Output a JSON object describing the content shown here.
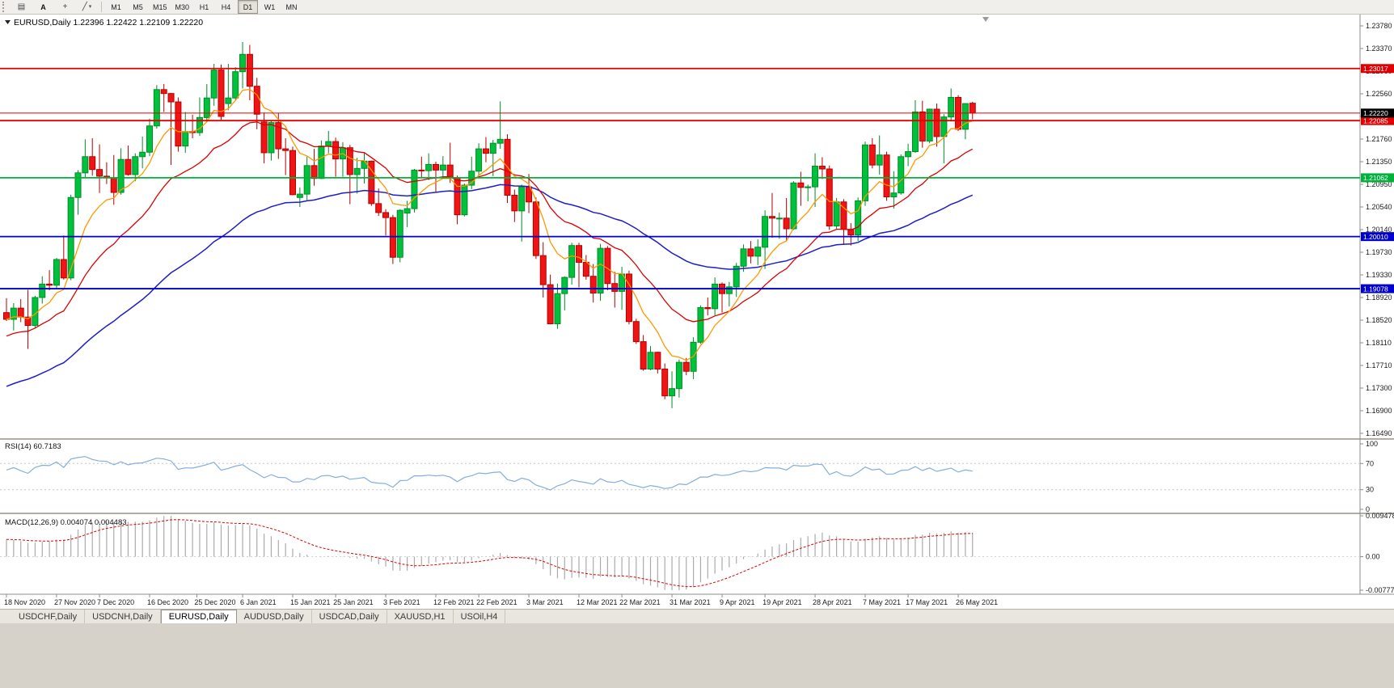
{
  "toolbar": {
    "icon_buttons": [
      {
        "name": "tick-chart-icon",
        "glyph": "▤"
      },
      {
        "name": "text-label-button",
        "glyph": "A"
      },
      {
        "name": "crosshair-icon",
        "glyph": "+"
      },
      {
        "name": "draw-tools-icon",
        "glyph": "╱",
        "caret": "▾"
      }
    ],
    "timeframes": [
      {
        "label": "M1"
      },
      {
        "label": "M5"
      },
      {
        "label": "M15"
      },
      {
        "label": "M30"
      },
      {
        "label": "H1"
      },
      {
        "label": "H4"
      },
      {
        "label": "D1",
        "active": true
      },
      {
        "label": "W1"
      },
      {
        "label": "MN"
      }
    ]
  },
  "chart": {
    "title": "EURUSD,Daily 1.22396 1.22422 1.22109 1.22220",
    "current_price": {
      "label": "1.22220",
      "value": 1.2222,
      "badge_bg": "#000000",
      "line_color": "#e00000"
    },
    "levels": [
      {
        "value": 1.23017,
        "label": "1.23017",
        "color": "#e00000"
      },
      {
        "value": 1.22085,
        "label": "1.22085",
        "color": "#e00000"
      },
      {
        "value": 1.21062,
        "label": "1.21062",
        "color": "#00b23c"
      },
      {
        "value": 1.2001,
        "label": "1.20010",
        "color": "#0000cc"
      },
      {
        "value": 1.19078,
        "label": "1.19078",
        "color": "#0000cc"
      }
    ],
    "price_axis_labels": [
      "1.23780",
      "1.23370",
      "1.22960",
      "1.22560",
      "1.22150",
      "1.21760",
      "1.21350",
      "1.20950",
      "1.20540",
      "1.20140",
      "1.19730",
      "1.19330",
      "1.18920",
      "1.18520",
      "1.18110",
      "1.17710",
      "1.17300",
      "1.16900",
      "1.16490"
    ],
    "colors": {
      "bull_fill": "#00c13c",
      "bull_stroke": "#008c28",
      "bear_fill": "#f01414",
      "bear_stroke": "#b40000",
      "ma_fast": "#ff9800",
      "ma_med": "#dc0000",
      "ma_slow": "#1e1ec8"
    }
  },
  "rsi": {
    "label": "RSI(14) 60.7183",
    "value": 60.7183,
    "line_color": "#85aedc",
    "axis_labels": [
      {
        "text": "100",
        "value": 100
      },
      {
        "text": "70",
        "value": 70
      },
      {
        "text": "30",
        "value": 30
      },
      {
        "text": "0",
        "value": 0
      }
    ]
  },
  "macd": {
    "label": "MACD(12,26,9) 0.004074 0.004483",
    "values": [
      0.004074,
      0.004483
    ],
    "hist_color": "#ababab",
    "signal_color": "#e00000",
    "axis_labels": [
      {
        "text": "0.009478",
        "value": 0.009478
      },
      {
        "text": "0.00",
        "value": 0
      },
      {
        "text": "-0.00777",
        "value": -0.00777
      }
    ]
  },
  "time_axis": {
    "labels": [
      {
        "text": "18 Nov 2020",
        "i": 0
      },
      {
        "text": "27 Nov 2020",
        "i": 7
      },
      {
        "text": "7 Dec 2020",
        "i": 13
      },
      {
        "text": "16 Dec 2020",
        "i": 20
      },
      {
        "text": "25 Dec 2020",
        "i": 26.6
      },
      {
        "text": "6 Jan 2021",
        "i": 33
      },
      {
        "text": "15 Jan 2021",
        "i": 40
      },
      {
        "text": "25 Jan 2021",
        "i": 46
      },
      {
        "text": "3 Feb 2021",
        "i": 53
      },
      {
        "text": "12 Feb 2021",
        "i": 60
      },
      {
        "text": "22 Feb 2021",
        "i": 66
      },
      {
        "text": "3 Mar 2021",
        "i": 73
      },
      {
        "text": "12 Mar 2021",
        "i": 80
      },
      {
        "text": "22 Mar 2021",
        "i": 86
      },
      {
        "text": "31 Mar 2021",
        "i": 93
      },
      {
        "text": "9 Apr 2021",
        "i": 100
      },
      {
        "text": "19 Apr 2021",
        "i": 106
      },
      {
        "text": "28 Apr 2021",
        "i": 113
      },
      {
        "text": "7 May 2021",
        "i": 120
      },
      {
        "text": "17 May 2021",
        "i": 126
      },
      {
        "text": "26 May 2021",
        "i": 133
      }
    ]
  },
  "tabs": [
    {
      "label": "USDCHF,Daily"
    },
    {
      "label": "USDCNH,Daily"
    },
    {
      "label": "EURUSD,Daily",
      "active": true
    },
    {
      "label": "AUDUSD,Daily"
    },
    {
      "label": "USDCAD,Daily"
    },
    {
      "label": "XAUUSD,H1"
    },
    {
      "label": "USOil,H4"
    }
  ],
  "chart_data": {
    "type": "candlestick",
    "symbol": "EURUSD",
    "timeframe": "Daily",
    "last_ohlc": {
      "open": 1.22396,
      "high": 1.22422,
      "low": 1.22109,
      "close": 1.2222
    },
    "price_range": [
      1.1649,
      1.2378
    ],
    "ohlc": [
      [
        1.1865,
        1.1891,
        1.185,
        1.1853
      ],
      [
        1.1853,
        1.1882,
        1.1833,
        1.1873
      ],
      [
        1.1873,
        1.1889,
        1.1848,
        1.1857
      ],
      [
        1.1857,
        1.1906,
        1.18,
        1.1842
      ],
      [
        1.1842,
        1.1895,
        1.1838,
        1.1892
      ],
      [
        1.1892,
        1.193,
        1.1881,
        1.1916
      ],
      [
        1.1916,
        1.1941,
        1.1905,
        1.1914
      ],
      [
        1.1914,
        1.1963,
        1.1907,
        1.196
      ],
      [
        1.196,
        1.2003,
        1.1924,
        1.1927
      ],
      [
        1.1927,
        1.2076,
        1.1923,
        1.2071
      ],
      [
        1.2071,
        1.212,
        1.204,
        1.2115
      ],
      [
        1.2115,
        1.2175,
        1.2106,
        1.2144
      ],
      [
        1.2144,
        1.2177,
        1.211,
        1.2121
      ],
      [
        1.2121,
        1.2166,
        1.2079,
        1.2109
      ],
      [
        1.2109,
        1.2134,
        1.2095,
        1.2106
      ],
      [
        1.2106,
        1.2147,
        1.2058,
        1.208
      ],
      [
        1.208,
        1.2159,
        1.2076,
        1.2139
      ],
      [
        1.2139,
        1.2164,
        1.211,
        1.2112
      ],
      [
        1.2112,
        1.215,
        1.21,
        1.2144
      ],
      [
        1.2144,
        1.218,
        1.2123,
        1.2152
      ],
      [
        1.2152,
        1.2212,
        1.2145,
        1.2199
      ],
      [
        1.2199,
        1.2272,
        1.2194,
        1.2264
      ],
      [
        1.2264,
        1.2274,
        1.2224,
        1.2257
      ],
      [
        1.2257,
        1.2258,
        1.2129,
        1.2242
      ],
      [
        1.2242,
        1.225,
        1.2153,
        1.2163
      ],
      [
        1.2163,
        1.2224,
        1.2151,
        1.2189
      ],
      [
        1.2189,
        1.2219,
        1.2177,
        1.2187
      ],
      [
        1.2187,
        1.225,
        1.2181,
        1.2214
      ],
      [
        1.2214,
        1.2274,
        1.2206,
        1.2249
      ],
      [
        1.2249,
        1.231,
        1.2235,
        1.2299
      ],
      [
        1.2299,
        1.2309,
        1.221,
        1.2216
      ],
      [
        1.2239,
        1.231,
        1.2227,
        1.2249
      ],
      [
        1.2249,
        1.2304,
        1.2245,
        1.2296
      ],
      [
        1.2296,
        1.2349,
        1.2266,
        1.2327
      ],
      [
        1.2327,
        1.2344,
        1.2245,
        1.227
      ],
      [
        1.227,
        1.2285,
        1.2193,
        1.222
      ],
      [
        1.2206,
        1.2223,
        1.2132,
        1.2151
      ],
      [
        1.2151,
        1.2208,
        1.2137,
        1.2205
      ],
      [
        1.2205,
        1.2222,
        1.214,
        1.2158
      ],
      [
        1.2158,
        1.2177,
        1.2111,
        1.2155
      ],
      [
        1.2155,
        1.2162,
        1.2075,
        1.2076
      ],
      [
        1.2071,
        1.2089,
        1.2054,
        1.2077
      ],
      [
        1.2077,
        1.2144,
        1.2066,
        1.2128
      ],
      [
        1.2128,
        1.2158,
        1.2092,
        1.2105
      ],
      [
        1.2105,
        1.2173,
        1.2104,
        1.2163
      ],
      [
        1.2163,
        1.219,
        1.215,
        1.2171
      ],
      [
        1.2171,
        1.2178,
        1.2108,
        1.214
      ],
      [
        1.214,
        1.217,
        1.2108,
        1.216
      ],
      [
        1.216,
        1.2165,
        1.2059,
        1.2112
      ],
      [
        1.2112,
        1.2142,
        1.2078,
        1.2123
      ],
      [
        1.2123,
        1.2151,
        1.2096,
        1.2136
      ],
      [
        1.2136,
        1.2137,
        1.2056,
        1.206
      ],
      [
        1.206,
        1.2087,
        1.2038,
        1.2044
      ],
      [
        1.2044,
        1.205,
        1.2003,
        1.2035
      ],
      [
        1.2035,
        1.204,
        1.1952,
        1.1964
      ],
      [
        1.1964,
        1.205,
        1.1955,
        1.2048
      ],
      [
        1.2043,
        1.2065,
        1.2018,
        1.2051
      ],
      [
        1.2051,
        1.2122,
        1.2044,
        1.212
      ],
      [
        1.212,
        1.2144,
        1.2105,
        1.2119
      ],
      [
        1.2119,
        1.215,
        1.2102,
        1.213
      ],
      [
        1.213,
        1.2135,
        1.2081,
        1.212
      ],
      [
        1.212,
        1.2145,
        1.2109,
        1.2129
      ],
      [
        1.2129,
        1.2169,
        1.2097,
        1.2106
      ],
      [
        1.2106,
        1.211,
        1.2023,
        1.204
      ],
      [
        1.204,
        1.2096,
        1.2037,
        1.2093
      ],
      [
        1.2093,
        1.2144,
        1.2086,
        1.2118
      ],
      [
        1.2118,
        1.2168,
        1.2109,
        1.2158
      ],
      [
        1.2158,
        1.2179,
        1.2134,
        1.215
      ],
      [
        1.215,
        1.2174,
        1.2109,
        1.2168
      ],
      [
        1.2168,
        1.2243,
        1.2158,
        1.2175
      ],
      [
        1.2175,
        1.2184,
        1.2061,
        1.2075
      ],
      [
        1.2075,
        1.2085,
        1.2027,
        1.2047
      ],
      [
        1.2047,
        1.2094,
        1.1992,
        1.209
      ],
      [
        1.209,
        1.2113,
        1.2043,
        1.2063
      ],
      [
        1.2063,
        1.2071,
        1.1961,
        1.1967
      ],
      [
        1.1967,
        1.1991,
        1.1892,
        1.1915
      ],
      [
        1.1915,
        1.1933,
        1.1844,
        1.1845
      ],
      [
        1.1845,
        1.1917,
        1.1836,
        1.1899
      ],
      [
        1.1899,
        1.193,
        1.1869,
        1.1928
      ],
      [
        1.1928,
        1.199,
        1.1915,
        1.1985
      ],
      [
        1.1985,
        1.199,
        1.191,
        1.1955
      ],
      [
        1.1955,
        1.1968,
        1.1924,
        1.193
      ],
      [
        1.193,
        1.1952,
        1.1883,
        1.19
      ],
      [
        1.19,
        1.1988,
        1.1886,
        1.198
      ],
      [
        1.198,
        1.1984,
        1.1905,
        1.1917
      ],
      [
        1.1917,
        1.1938,
        1.1874,
        1.1903
      ],
      [
        1.1903,
        1.1947,
        1.187,
        1.1934
      ],
      [
        1.1934,
        1.194,
        1.1844,
        1.1849
      ],
      [
        1.1849,
        1.1854,
        1.1809,
        1.1813
      ],
      [
        1.1813,
        1.1825,
        1.1761,
        1.1764
      ],
      [
        1.1764,
        1.1805,
        1.1762,
        1.1794
      ],
      [
        1.1794,
        1.1795,
        1.1756,
        1.1764
      ],
      [
        1.1764,
        1.1774,
        1.171,
        1.1716
      ],
      [
        1.1716,
        1.176,
        1.1694,
        1.1729
      ],
      [
        1.1729,
        1.1781,
        1.1713,
        1.1776
      ],
      [
        1.1776,
        1.1784,
        1.1753,
        1.176
      ],
      [
        1.176,
        1.1821,
        1.1746,
        1.1812
      ],
      [
        1.1812,
        1.1878,
        1.1809,
        1.1874
      ],
      [
        1.1874,
        1.1892,
        1.186,
        1.1872
      ],
      [
        1.1872,
        1.1928,
        1.186,
        1.1916
      ],
      [
        1.1916,
        1.1919,
        1.1865,
        1.1899
      ],
      [
        1.1899,
        1.192,
        1.1876,
        1.1911
      ],
      [
        1.1911,
        1.1954,
        1.1893,
        1.1948
      ],
      [
        1.1948,
        1.1987,
        1.1938,
        1.1979
      ],
      [
        1.1979,
        1.1993,
        1.1953,
        1.1966
      ],
      [
        1.1966,
        1.1996,
        1.195,
        1.1982
      ],
      [
        1.1982,
        1.2048,
        1.1943,
        1.2037
      ],
      [
        1.2037,
        1.2079,
        1.1999,
        1.2034
      ],
      [
        1.2034,
        1.2044,
        1.1997,
        1.2034
      ],
      [
        1.2034,
        1.207,
        1.1994,
        1.2015
      ],
      [
        1.2015,
        1.21,
        1.2013,
        1.2097
      ],
      [
        1.2097,
        1.2117,
        1.2056,
        1.2089
      ],
      [
        1.2089,
        1.2094,
        1.2064,
        1.209
      ],
      [
        1.209,
        1.215,
        1.2054,
        1.2127
      ],
      [
        1.2127,
        1.2143,
        1.2104,
        1.2122
      ],
      [
        1.2122,
        1.2128,
        1.2013,
        1.202
      ],
      [
        1.202,
        1.207,
        1.2013,
        1.2063
      ],
      [
        1.2063,
        1.2068,
        1.1986,
        1.2014
      ],
      [
        1.2014,
        1.2025,
        1.1985,
        1.2004
      ],
      [
        1.2004,
        1.2071,
        1.1993,
        1.2065
      ],
      [
        1.2065,
        1.2171,
        1.2056,
        1.2165
      ],
      [
        1.2165,
        1.2177,
        1.2123,
        1.2129
      ],
      [
        1.2129,
        1.2182,
        1.2112,
        1.2147
      ],
      [
        1.2147,
        1.2153,
        1.2065,
        1.2072
      ],
      [
        1.2072,
        1.2118,
        1.2051,
        1.2079
      ],
      [
        1.2079,
        1.2148,
        1.2076,
        1.2144
      ],
      [
        1.2144,
        1.2167,
        1.2127,
        1.2153
      ],
      [
        1.2153,
        1.2245,
        1.2151,
        1.2224
      ],
      [
        1.2224,
        1.2244,
        1.216,
        1.2172
      ],
      [
        1.2172,
        1.223,
        1.2168,
        1.2229
      ],
      [
        1.2229,
        1.2239,
        1.2162,
        1.218
      ],
      [
        1.218,
        1.222,
        1.2132,
        1.2215
      ],
      [
        1.2215,
        1.2266,
        1.2207,
        1.225
      ],
      [
        1.225,
        1.2254,
        1.219,
        1.2193
      ],
      [
        1.2193,
        1.2225,
        1.2175,
        1.2239
      ],
      [
        1.22396,
        1.22422,
        1.22109,
        1.2222
      ]
    ]
  }
}
